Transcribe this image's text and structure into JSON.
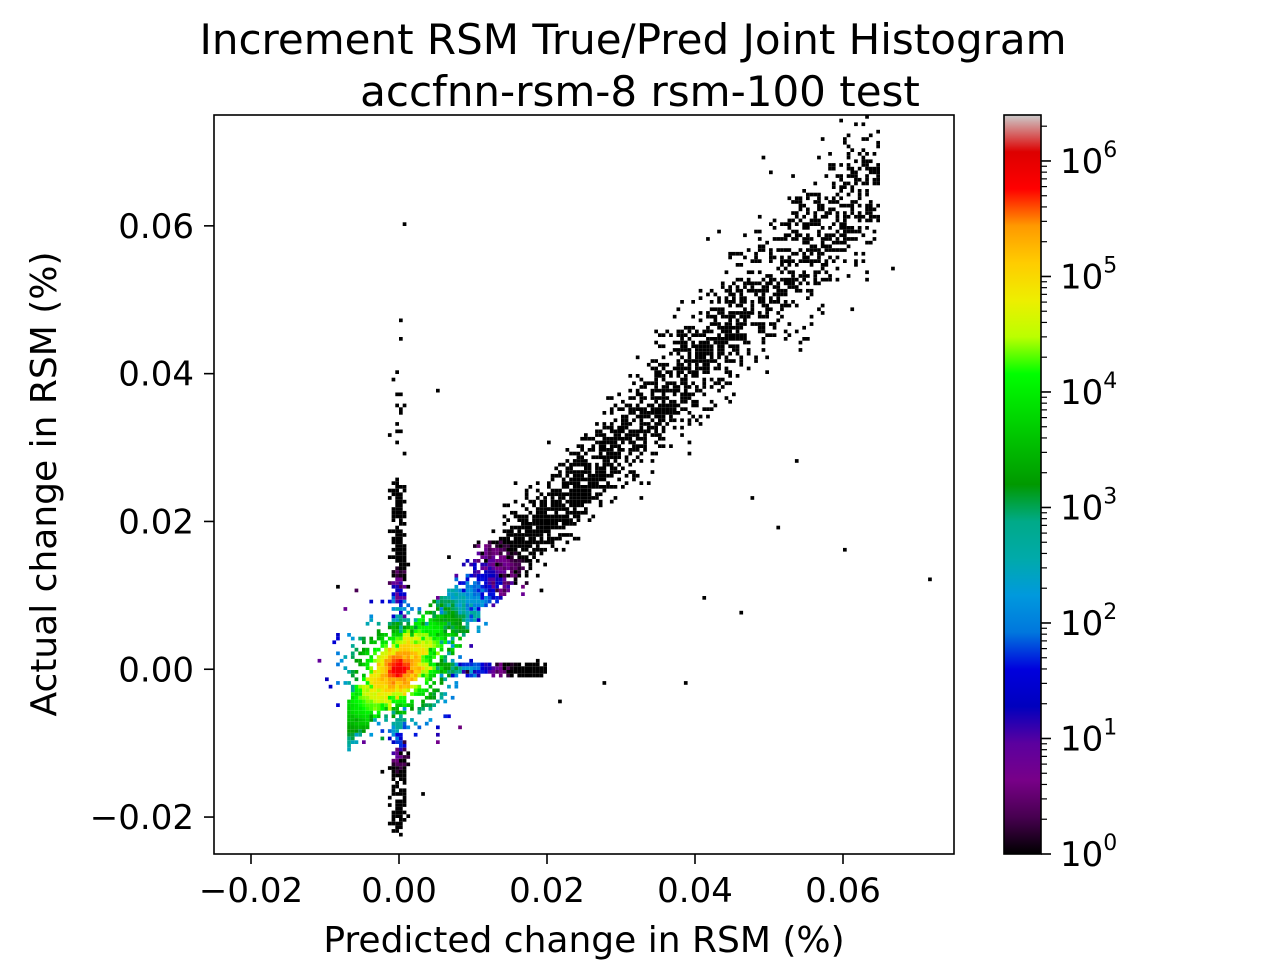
{
  "chart_data": {
    "type": "heatmap",
    "title": "Increment RSM True/Pred Joint Histogram",
    "subtitle": "accfnn-rsm-8 rsm-100 test",
    "xlabel": "Predicted change in RSM (%)",
    "ylabel": "Actual change in RSM (%)",
    "xlim": [
      -0.025,
      0.075
    ],
    "ylim": [
      -0.025,
      0.075
    ],
    "x_ticks": [
      -0.02,
      0.0,
      0.02,
      0.04,
      0.06
    ],
    "x_tick_labels": [
      "−0.02",
      "0.00",
      "0.02",
      "0.04",
      "0.06"
    ],
    "y_ticks": [
      -0.02,
      0.0,
      0.02,
      0.04,
      0.06
    ],
    "y_tick_labels": [
      "−0.02",
      "0.00",
      "0.02",
      "0.04",
      "0.06"
    ],
    "grid": false,
    "colorbar": {
      "scale": "log",
      "colormap": "nipy_spectral",
      "range": [
        1,
        2500000
      ],
      "ticks": [
        {
          "base": "10",
          "exp": "0",
          "value": 1
        },
        {
          "base": "10",
          "exp": "1",
          "value": 10
        },
        {
          "base": "10",
          "exp": "2",
          "value": 100
        },
        {
          "base": "10",
          "exp": "3",
          "value": 1000
        },
        {
          "base": "10",
          "exp": "4",
          "value": 10000
        },
        {
          "base": "10",
          "exp": "5",
          "value": 100000
        },
        {
          "base": "10",
          "exp": "6",
          "value": 1000000
        }
      ]
    },
    "distribution": {
      "peak": {
        "x": 0.0,
        "y": 0.0,
        "count": 1000000
      },
      "main_diagonal": {
        "from": [
          -0.007,
          -0.007
        ],
        "to": [
          0.065,
          0.068
        ]
      },
      "spike_vertical": {
        "x": 0.0,
        "y_range": [
          -0.022,
          0.047
        ]
      },
      "spike_horizontal": {
        "y": 0.0,
        "x_range": [
          0.0,
          0.02
        ]
      },
      "outliers": [
        [
          0.0606,
          0.0707
        ],
        [
          0.0667,
          0.0541
        ],
        [
          0.0718,
          0.0121
        ],
        [
          0.0602,
          0.0163
        ],
        [
          0.0538,
          0.0283
        ],
        [
          0.0467,
          0.0585
        ],
        [
          0.0431,
          0.0593
        ],
        [
          0.0009,
          0.0602
        ],
        [
          0.0003,
          0.0446
        ],
        [
          0.0003,
          0.0472
        ],
        [
          0.0051,
          0.0379
        ],
        [
          0.0411,
          0.0097
        ],
        [
          0.0462,
          0.0075
        ],
        [
          0.0514,
          0.0194
        ],
        [
          0.0385,
          -0.0018
        ],
        [
          0.0278,
          -0.002
        ],
        [
          0.022,
          -0.0046
        ],
        [
          0.0475,
          0.023
        ],
        [
          0.0032,
          -0.0171
        ],
        [
          -0.0021,
          -0.014
        ],
        [
          0.0,
          -0.0222
        ],
        [
          0.0545,
          0.0431
        ],
        [
          0.0588,
          0.0637
        ],
        [
          0.0502,
          0.0672
        ]
      ]
    }
  }
}
